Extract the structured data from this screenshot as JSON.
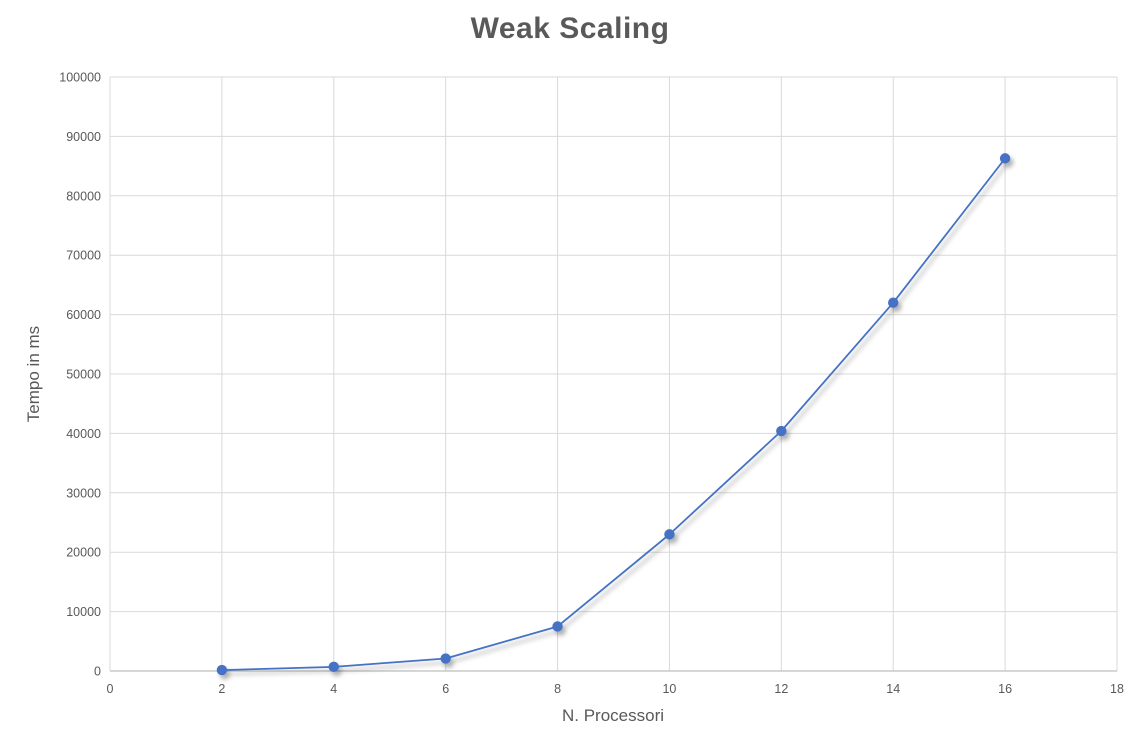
{
  "chart_data": {
    "type": "line",
    "title": "Weak Scaling",
    "xlabel": "N. Processori",
    "ylabel": "Tempo in ms",
    "x": [
      2,
      4,
      6,
      8,
      10,
      12,
      14,
      16
    ],
    "values": [
      150,
      700,
      2100,
      7500,
      23000,
      40400,
      62000,
      86300
    ],
    "xlim": [
      0,
      18
    ],
    "ylim": [
      0,
      100000
    ],
    "x_ticks": [
      0,
      2,
      4,
      6,
      8,
      10,
      12,
      14,
      16,
      18
    ],
    "y_ticks": [
      0,
      10000,
      20000,
      30000,
      40000,
      50000,
      60000,
      70000,
      80000,
      90000,
      100000
    ],
    "grid": true,
    "legend": false,
    "marker": "circle",
    "colors": {
      "series": "#4472C4",
      "gridline": "#D9D9D9",
      "axis_line": "#BFBFBF",
      "tick_text": "#595959",
      "title_text": "#595959",
      "background": "#FFFFFF"
    }
  }
}
